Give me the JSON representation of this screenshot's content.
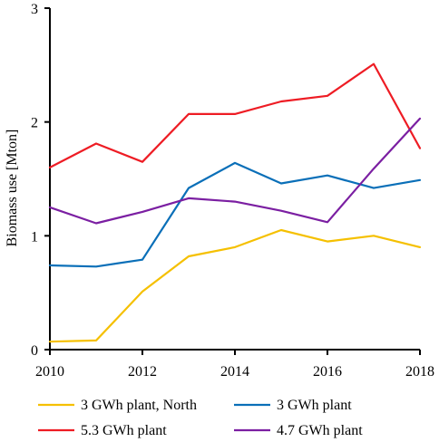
{
  "chart_data": {
    "type": "line",
    "title": "",
    "xlabel": "",
    "ylabel": "Biomass use [Mton]",
    "x": [
      2010,
      2011,
      2012,
      2013,
      2014,
      2015,
      2016,
      2017,
      2018
    ],
    "xticks": [
      "2010",
      "2012",
      "2014",
      "2016",
      "2018"
    ],
    "yticks": [
      "0",
      "1",
      "2",
      "3"
    ],
    "xlim": [
      2010,
      2018
    ],
    "ylim": [
      0,
      3
    ],
    "grid": false,
    "legend_position": "bottom",
    "series": [
      {
        "name": "3 GWh plant, North",
        "color": "#F5C000",
        "values": [
          0.07,
          0.08,
          0.51,
          0.82,
          0.9,
          1.05,
          0.95,
          1.0,
          0.9
        ]
      },
      {
        "name": "3 GWh plant",
        "color": "#0A6FB8",
        "values": [
          0.74,
          0.73,
          0.79,
          1.42,
          1.64,
          1.46,
          1.53,
          1.42,
          1.49
        ]
      },
      {
        "name": "5.3 GWh plant",
        "color": "#EE1C24",
        "values": [
          1.6,
          1.81,
          1.65,
          2.07,
          2.07,
          2.18,
          2.23,
          2.51,
          1.77
        ]
      },
      {
        "name": "4.7 GWh plant",
        "color": "#7B1FA2",
        "values": [
          1.25,
          1.11,
          1.21,
          1.33,
          1.3,
          1.22,
          1.12,
          1.59,
          2.03
        ]
      }
    ]
  }
}
